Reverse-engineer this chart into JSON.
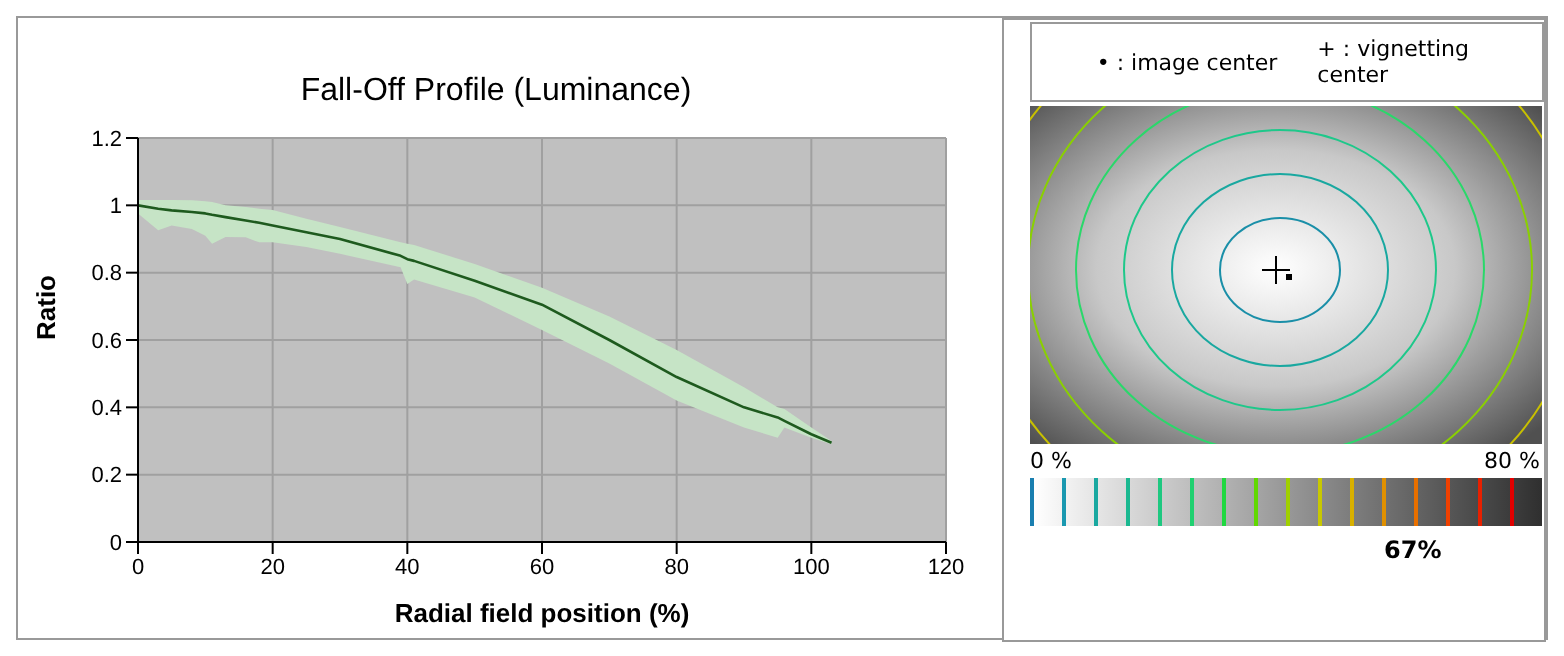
{
  "chart_data": [
    {
      "type": "line",
      "title": "Fall-Off Profile (Luminance)",
      "xlabel": "Radial field position (%)",
      "ylabel": "Ratio",
      "x": [
        0,
        3,
        5,
        8,
        10,
        11,
        13,
        16,
        18,
        20,
        25,
        30,
        39,
        40,
        41,
        50,
        60,
        70,
        80,
        90,
        95,
        96,
        100,
        103
      ],
      "series": [
        {
          "color": "#1e5a1e",
          "values": [
            1.0,
            0.99,
            0.985,
            0.98,
            0.976,
            0.972,
            0.965,
            0.955,
            0.948,
            0.94,
            0.92,
            0.9,
            0.85,
            0.84,
            0.835,
            0.776,
            0.705,
            0.6,
            0.49,
            0.4,
            0.37,
            0.36,
            0.32,
            0.295
          ],
          "lower": [
            0.976,
            0.926,
            0.94,
            0.93,
            0.91,
            0.886,
            0.906,
            0.905,
            0.89,
            0.89,
            0.876,
            0.856,
            0.816,
            0.766,
            0.78,
            0.726,
            0.63,
            0.53,
            0.42,
            0.34,
            0.31,
            0.34,
            0.31,
            0.29
          ],
          "upper": [
            1.016,
            1.016,
            1.016,
            1.015,
            1.012,
            1.01,
            1.0,
            0.995,
            0.99,
            0.986,
            0.96,
            0.936,
            0.89,
            0.886,
            0.882,
            0.826,
            0.755,
            0.67,
            0.57,
            0.46,
            0.4,
            0.395,
            0.34,
            0.3
          ]
        }
      ],
      "xlim": [
        0,
        120
      ],
      "xticks": [
        0,
        20,
        40,
        60,
        80,
        100,
        120
      ],
      "ylim": [
        0,
        1.2
      ],
      "yticks": [
        0,
        0.2,
        0.4,
        0.6,
        0.8,
        1,
        1.2
      ],
      "grid": true,
      "legend": false,
      "marker": "none",
      "line_style": "solid"
    },
    {
      "type": "other",
      "annotations": [
        "• : image center",
        "+ : vignetting center",
        "0 %",
        "80 %",
        "67%"
      ]
    }
  ]
}
